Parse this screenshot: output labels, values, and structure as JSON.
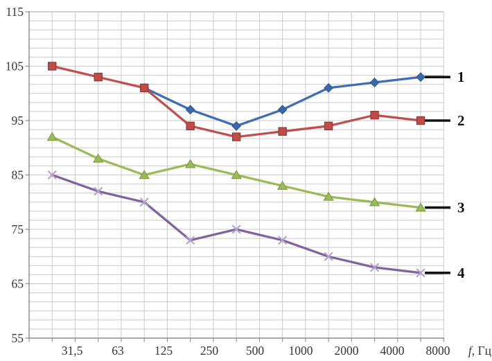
{
  "chart_data": {
    "type": "line",
    "title": "",
    "xlabel": "f, Гц",
    "ylabel": "",
    "categories": [
      "31,5",
      "63",
      "125",
      "250",
      "500",
      "1000",
      "2000",
      "4000",
      "8000"
    ],
    "y_ticks": [
      115,
      105,
      95,
      85,
      75,
      65,
      55
    ],
    "ylim": [
      55,
      115
    ],
    "grid": true,
    "y_minor_divisions_per_major": 6,
    "x_minor_divisions_per_band": 2,
    "legend_position": "right-callout-lines",
    "series": [
      {
        "name": "1",
        "marker": "diamond",
        "color": "#3f6eb5",
        "marker_fill": "#3c68ad",
        "marker_edge": "#2e5389",
        "values": [
          null,
          null,
          101,
          97,
          94,
          97,
          101,
          102,
          103
        ]
      },
      {
        "name": "2",
        "marker": "square",
        "color": "#c0504d",
        "marker_fill": "#bf4c49",
        "marker_edge": "#8f3936",
        "values": [
          105,
          103,
          101,
          94,
          92,
          93,
          94,
          96,
          95
        ]
      },
      {
        "name": "3",
        "marker": "triangle",
        "color": "#9bbb59",
        "marker_fill": "#9bbb59",
        "marker_edge": "#7a9540",
        "values": [
          92,
          88,
          85,
          87,
          85,
          83,
          81,
          80,
          79
        ]
      },
      {
        "name": "4",
        "marker": "x",
        "color": "#8064a2",
        "marker_fill": "#b3a2c7",
        "marker_edge": "#b3a2c7",
        "values": [
          85,
          82,
          80,
          73,
          75,
          73,
          70,
          68,
          67
        ]
      }
    ]
  },
  "styles": {
    "background": "#ffffff",
    "grid_color": "#c9c9c9",
    "axis_color": "#8c8c8c",
    "border_color": "#b3b3b3",
    "text_color": "#363636",
    "callout_color": "#141414"
  }
}
